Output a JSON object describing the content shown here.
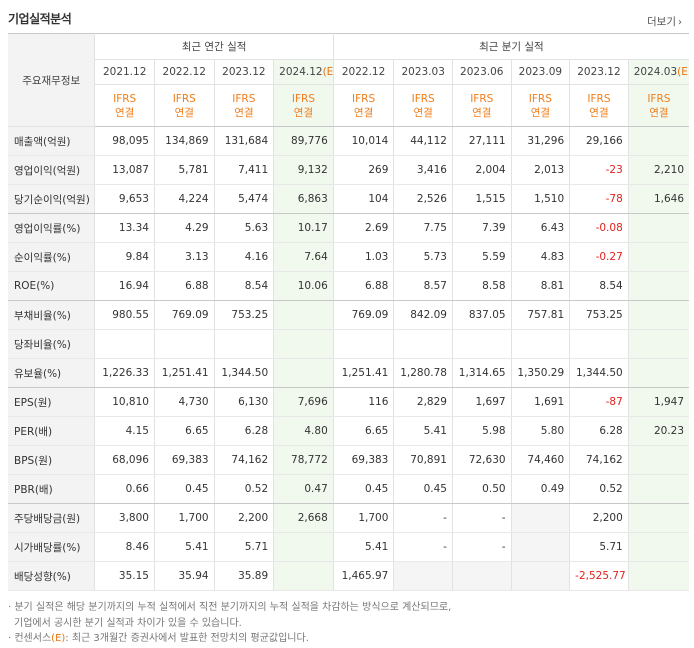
{
  "section_title": "기업실적분석",
  "more_label": "더보기",
  "more_arrow": "›",
  "header": {
    "label": "주요재무정보",
    "annual_group": "최근 연간 실적",
    "quarter_group": "최근 분기 실적",
    "annual_periods": [
      "2021.12",
      "2022.12",
      "2023.12",
      "2024.12"
    ],
    "annual_estimate_mark": "(E)",
    "quarter_periods": [
      "2022.12",
      "2023.03",
      "2023.06",
      "2023.09",
      "2023.12",
      "2024.03"
    ],
    "quarter_estimate_mark": "(E)",
    "ifrs_line1": "IFRS",
    "ifrs_line2": "연결"
  },
  "rows": [
    {
      "label": "매출액(억원)",
      "annual": [
        "98,095",
        "134,869",
        "131,684",
        "89,776"
      ],
      "quarter": [
        "10,014",
        "44,112",
        "27,111",
        "31,296",
        "29,166",
        ""
      ]
    },
    {
      "label": "영업이익(억원)",
      "annual": [
        "13,087",
        "5,781",
        "7,411",
        "9,132"
      ],
      "quarter": [
        "269",
        "3,416",
        "2,004",
        "2,013",
        "-23",
        "2,210"
      ]
    },
    {
      "label": "당기순이익(억원)",
      "annual": [
        "9,653",
        "4,224",
        "5,474",
        "6,863"
      ],
      "quarter": [
        "104",
        "2,526",
        "1,515",
        "1,510",
        "-78",
        "1,646"
      ]
    },
    {
      "label": "영업이익률(%)",
      "annual": [
        "13.34",
        "4.29",
        "5.63",
        "10.17"
      ],
      "quarter": [
        "2.69",
        "7.75",
        "7.39",
        "6.43",
        "-0.08",
        ""
      ]
    },
    {
      "label": "순이익률(%)",
      "annual": [
        "9.84",
        "3.13",
        "4.16",
        "7.64"
      ],
      "quarter": [
        "1.03",
        "5.73",
        "5.59",
        "4.83",
        "-0.27",
        ""
      ]
    },
    {
      "label": "ROE(%)",
      "annual": [
        "16.94",
        "6.88",
        "8.54",
        "10.06"
      ],
      "quarter": [
        "6.88",
        "8.57",
        "8.58",
        "8.81",
        "8.54",
        ""
      ]
    },
    {
      "label": "부채비율(%)",
      "annual": [
        "980.55",
        "769.09",
        "753.25",
        ""
      ],
      "quarter": [
        "769.09",
        "842.09",
        "837.05",
        "757.81",
        "753.25",
        ""
      ]
    },
    {
      "label": "당좌비율(%)",
      "annual": [
        "",
        "",
        "",
        ""
      ],
      "quarter": [
        "",
        "",
        "",
        "",
        "",
        ""
      ]
    },
    {
      "label": "유보율(%)",
      "annual": [
        "1,226.33",
        "1,251.41",
        "1,344.50",
        ""
      ],
      "quarter": [
        "1,251.41",
        "1,280.78",
        "1,314.65",
        "1,350.29",
        "1,344.50",
        ""
      ]
    },
    {
      "label": "EPS(원)",
      "annual": [
        "10,810",
        "4,730",
        "6,130",
        "7,696"
      ],
      "quarter": [
        "116",
        "2,829",
        "1,697",
        "1,691",
        "-87",
        "1,947"
      ]
    },
    {
      "label": "PER(배)",
      "annual": [
        "4.15",
        "6.65",
        "6.28",
        "4.80"
      ],
      "quarter": [
        "6.65",
        "5.41",
        "5.98",
        "5.80",
        "6.28",
        "20.23"
      ]
    },
    {
      "label": "BPS(원)",
      "annual": [
        "68,096",
        "69,383",
        "74,162",
        "78,772"
      ],
      "quarter": [
        "69,383",
        "70,891",
        "72,630",
        "74,460",
        "74,162",
        ""
      ]
    },
    {
      "label": "PBR(배)",
      "annual": [
        "0.66",
        "0.45",
        "0.52",
        "0.47"
      ],
      "quarter": [
        "0.45",
        "0.45",
        "0.50",
        "0.49",
        "0.52",
        ""
      ]
    },
    {
      "label": "주당배당금(원)",
      "annual": [
        "3,800",
        "1,700",
        "2,200",
        "2,668"
      ],
      "quarter": [
        "1,700",
        "-",
        "-",
        "",
        "2,200",
        ""
      ]
    },
    {
      "label": "시가배당률(%)",
      "annual": [
        "8.46",
        "5.41",
        "5.71",
        ""
      ],
      "quarter": [
        "5.41",
        "-",
        "-",
        "",
        "5.71",
        ""
      ]
    },
    {
      "label": "배당성향(%)",
      "annual": [
        "35.15",
        "35.94",
        "35.89",
        ""
      ],
      "quarter": [
        "1,465.97",
        "",
        "",
        "",
        "-2,525.77",
        ""
      ]
    }
  ],
  "notes": {
    "line1": "· 분기 실적은 해당 분기까지의 누적 실적에서 직전 분기까지의 누적 실적을 차감하는 방식으로 계산되므로,",
    "line2": "기업에서 공시한 분기 실적과 차이가 있을 수 있습니다.",
    "line3_prefix": "· 컨센서스",
    "line3_mark": "(E)",
    "line3_suffix": ": 최근 3개월간 증권사에서 발표한 전망치의 평균값입니다."
  },
  "colors": {
    "accent_orange": "#f07d1a",
    "negative_red": "#e2211c",
    "estimate_bg": "#f1f8ee",
    "label_bg": "#f3f3f3",
    "blank_bg": "#f5f5f5"
  }
}
